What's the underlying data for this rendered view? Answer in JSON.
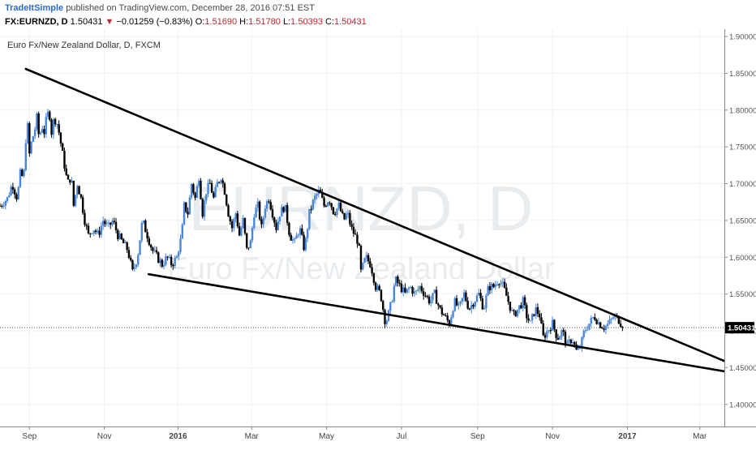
{
  "header": {
    "author": "TradeItSimple",
    "published_text": "published on TradingView.com, December 28, 2016 07:51 EST",
    "symbol": "FX:EURNZD, D",
    "last": "1.50431",
    "change_arrow": "▼",
    "change": "−0.01259 (−0.83%)",
    "open_label": "O:",
    "open": "1.51690",
    "high_label": "H:",
    "high": "1.51780",
    "low_label": "L:",
    "low": "1.50393",
    "close_label": "C:",
    "close": "1.50431"
  },
  "chart_data": {
    "type": "candlestick",
    "title": "Euro Fx/New Zealand Dollar, D, FXCM",
    "watermark_symbol": "EURNZD, D",
    "watermark_name": "Euro Fx/New Zealand Dollar",
    "price_label": "1.50431",
    "y_ticks": [
      "1.40000",
      "1.45000",
      "1.50000",
      "1.55000",
      "1.60000",
      "1.65000",
      "1.70000",
      "1.75000",
      "1.80000",
      "1.85000",
      "1.90000"
    ],
    "ylim": [
      1.37,
      1.91
    ],
    "x_ticks": [
      {
        "label": "Sep",
        "day": 2
      },
      {
        "label": "Nov",
        "day": 63
      },
      {
        "label": "2016",
        "day": 123
      },
      {
        "label": "Mar",
        "day": 183
      },
      {
        "label": "May",
        "day": 244
      },
      {
        "label": "Jul",
        "day": 305
      },
      {
        "label": "Sep",
        "day": 367
      },
      {
        "label": "Nov",
        "day": 428
      },
      {
        "label": "2017",
        "day": 489
      },
      {
        "label": "Mar",
        "day": 548
      }
    ],
    "xlim": [
      -22,
      568
    ],
    "last_day": 486,
    "price_path": [
      [
        -22,
        1.67
      ],
      [
        -16,
        1.68
      ],
      [
        -12,
        1.7
      ],
      [
        -8,
        1.68
      ],
      [
        -5,
        1.72
      ],
      [
        -3,
        1.7
      ],
      [
        -1,
        1.76
      ],
      [
        0,
        1.79
      ],
      [
        2,
        1.74
      ],
      [
        4,
        1.76
      ],
      [
        6,
        1.77
      ],
      [
        8,
        1.79
      ],
      [
        10,
        1.76
      ],
      [
        12,
        1.78
      ],
      [
        14,
        1.77
      ],
      [
        16,
        1.79
      ],
      [
        18,
        1.8
      ],
      [
        20,
        1.77
      ],
      [
        22,
        1.79
      ],
      [
        25,
        1.78
      ],
      [
        28,
        1.75
      ],
      [
        31,
        1.72
      ],
      [
        33,
        1.7
      ],
      [
        36,
        1.71
      ],
      [
        38,
        1.67
      ],
      [
        41,
        1.7
      ],
      [
        44,
        1.68
      ],
      [
        47,
        1.65
      ],
      [
        50,
        1.63
      ],
      [
        54,
        1.64
      ],
      [
        58,
        1.63
      ],
      [
        62,
        1.65
      ],
      [
        66,
        1.64
      ],
      [
        70,
        1.65
      ],
      [
        74,
        1.63
      ],
      [
        78,
        1.62
      ],
      [
        82,
        1.61
      ],
      [
        86,
        1.58
      ],
      [
        90,
        1.6
      ],
      [
        94,
        1.65
      ],
      [
        98,
        1.63
      ],
      [
        102,
        1.61
      ],
      [
        106,
        1.6
      ],
      [
        110,
        1.59
      ],
      [
        114,
        1.6
      ],
      [
        118,
        1.59
      ],
      [
        122,
        1.6
      ],
      [
        126,
        1.63
      ],
      [
        128,
        1.67
      ],
      [
        131,
        1.66
      ],
      [
        134,
        1.7
      ],
      [
        137,
        1.68
      ],
      [
        140,
        1.71
      ],
      [
        143,
        1.66
      ],
      [
        146,
        1.69
      ],
      [
        149,
        1.7
      ],
      [
        152,
        1.68
      ],
      [
        155,
        1.7
      ],
      [
        158,
        1.71
      ],
      [
        161,
        1.69
      ],
      [
        164,
        1.66
      ],
      [
        167,
        1.64
      ],
      [
        170,
        1.66
      ],
      [
        173,
        1.63
      ],
      [
        176,
        1.65
      ],
      [
        179,
        1.61
      ],
      [
        182,
        1.62
      ],
      [
        185,
        1.66
      ],
      [
        188,
        1.67
      ],
      [
        191,
        1.64
      ],
      [
        194,
        1.67
      ],
      [
        197,
        1.68
      ],
      [
        200,
        1.66
      ],
      [
        203,
        1.64
      ],
      [
        206,
        1.66
      ],
      [
        210,
        1.67
      ],
      [
        214,
        1.63
      ],
      [
        218,
        1.62
      ],
      [
        222,
        1.64
      ],
      [
        226,
        1.61
      ],
      [
        230,
        1.66
      ],
      [
        234,
        1.68
      ],
      [
        238,
        1.69
      ],
      [
        242,
        1.67
      ],
      [
        246,
        1.68
      ],
      [
        250,
        1.66
      ],
      [
        254,
        1.67
      ],
      [
        258,
        1.65
      ],
      [
        261,
        1.66
      ],
      [
        264,
        1.64
      ],
      [
        267,
        1.63
      ],
      [
        270,
        1.62
      ],
      [
        272,
        1.58
      ],
      [
        276,
        1.6
      ],
      [
        280,
        1.59
      ],
      [
        284,
        1.56
      ],
      [
        288,
        1.55
      ],
      [
        290,
        1.53
      ],
      [
        292,
        1.51
      ],
      [
        294,
        1.52
      ],
      [
        297,
        1.54
      ],
      [
        300,
        1.57
      ],
      [
        304,
        1.56
      ],
      [
        308,
        1.55
      ],
      [
        312,
        1.56
      ],
      [
        316,
        1.55
      ],
      [
        320,
        1.56
      ],
      [
        324,
        1.55
      ],
      [
        328,
        1.54
      ],
      [
        332,
        1.55
      ],
      [
        336,
        1.53
      ],
      [
        340,
        1.52
      ],
      [
        344,
        1.51
      ],
      [
        348,
        1.54
      ],
      [
        352,
        1.53
      ],
      [
        356,
        1.55
      ],
      [
        360,
        1.53
      ],
      [
        364,
        1.54
      ],
      [
        368,
        1.55
      ],
      [
        372,
        1.53
      ],
      [
        376,
        1.56
      ],
      [
        380,
        1.56
      ],
      [
        384,
        1.57
      ],
      [
        388,
        1.56
      ],
      [
        392,
        1.54
      ],
      [
        396,
        1.52
      ],
      [
        400,
        1.53
      ],
      [
        404,
        1.54
      ],
      [
        407,
        1.52
      ],
      [
        410,
        1.51
      ],
      [
        414,
        1.53
      ],
      [
        418,
        1.52
      ],
      [
        420,
        1.49
      ],
      [
        424,
        1.5
      ],
      [
        428,
        1.51
      ],
      [
        432,
        1.49
      ],
      [
        436,
        1.5
      ],
      [
        440,
        1.48
      ],
      [
        444,
        1.49
      ],
      [
        448,
        1.47
      ],
      [
        451,
        1.48
      ],
      [
        454,
        1.5
      ],
      [
        458,
        1.51
      ],
      [
        462,
        1.52
      ],
      [
        466,
        1.51
      ],
      [
        470,
        1.505
      ],
      [
        474,
        1.51
      ],
      [
        478,
        1.52
      ],
      [
        482,
        1.515
      ],
      [
        486,
        1.504
      ]
    ],
    "trendlines": [
      {
        "from": [
          -1,
          1.856
        ],
        "to": [
          568,
          1.459
        ]
      },
      {
        "from": [
          99,
          1.577
        ],
        "to": [
          568,
          1.445
        ]
      }
    ]
  }
}
